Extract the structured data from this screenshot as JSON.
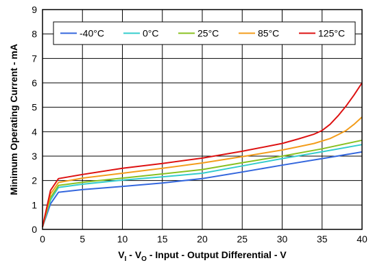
{
  "chart_data": {
    "type": "line",
    "xlabel": {
      "main": "V",
      "sub1": "I",
      "mid": " - V",
      "sub2": "O",
      "rest": " - Input - Output Differential - V"
    },
    "ylabel": "Minimum Operating Current - mA",
    "xlim": [
      0,
      40
    ],
    "ylim": [
      0,
      9
    ],
    "xticks": [
      0,
      5,
      10,
      15,
      20,
      25,
      30,
      35,
      40
    ],
    "yticks": [
      0,
      1,
      2,
      3,
      4,
      5,
      6,
      7,
      8,
      9
    ],
    "grid": true,
    "legend_position": "top",
    "series": [
      {
        "name": "-40°C",
        "color": "#3366dd",
        "x": [
          0,
          1,
          2,
          5,
          10,
          15,
          20,
          25,
          30,
          35,
          40
        ],
        "y": [
          0.1,
          1.05,
          1.52,
          1.63,
          1.76,
          1.9,
          2.08,
          2.35,
          2.63,
          2.9,
          3.17
        ]
      },
      {
        "name": "0°C",
        "color": "#33cccc",
        "x": [
          0,
          1,
          2,
          5,
          10,
          15,
          20,
          25,
          30,
          35,
          40
        ],
        "y": [
          0.1,
          1.2,
          1.72,
          1.85,
          2.02,
          2.15,
          2.3,
          2.6,
          2.9,
          3.18,
          3.47
        ]
      },
      {
        "name": "25°C",
        "color": "#88c020",
        "x": [
          0,
          1,
          2,
          5,
          10,
          15,
          20,
          25,
          30,
          35,
          40
        ],
        "y": [
          0.1,
          1.3,
          1.8,
          1.93,
          2.1,
          2.27,
          2.45,
          2.73,
          3.0,
          3.3,
          3.65
        ]
      },
      {
        "name": "85°C",
        "color": "#f39c1a",
        "x": [
          0,
          1,
          2,
          5,
          10,
          15,
          20,
          25,
          30,
          32,
          34,
          36,
          37,
          38,
          39,
          40
        ],
        "y": [
          0.1,
          1.45,
          1.92,
          2.1,
          2.3,
          2.5,
          2.72,
          2.98,
          3.25,
          3.38,
          3.52,
          3.72,
          3.88,
          4.05,
          4.3,
          4.6
        ]
      },
      {
        "name": "125°C",
        "color": "#dd1111",
        "x": [
          0,
          1,
          2,
          5,
          10,
          15,
          20,
          25,
          30,
          32,
          34,
          35,
          36,
          37,
          38,
          39,
          40
        ],
        "y": [
          0.1,
          1.6,
          2.08,
          2.25,
          2.5,
          2.7,
          2.92,
          3.2,
          3.52,
          3.7,
          3.9,
          4.05,
          4.3,
          4.65,
          5.05,
          5.5,
          6.0
        ]
      }
    ]
  }
}
